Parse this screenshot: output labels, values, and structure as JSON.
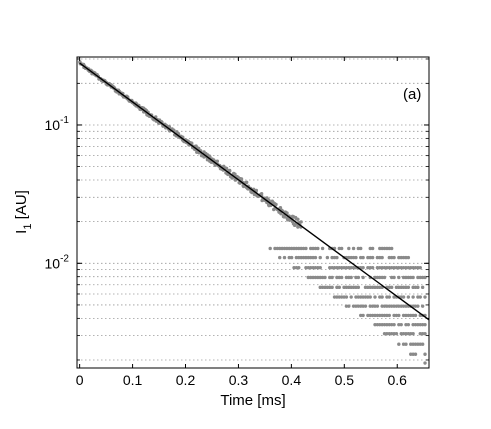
{
  "chart_data": {
    "type": "scatter",
    "panel_label": "(a)",
    "xlabel": "Time [ms]",
    "ylabel_main": "I",
    "ylabel_subscript": "1",
    "ylabel_unit": " [AU]",
    "x_scale": "linear",
    "y_scale": "log",
    "xlim": [
      -0.005,
      0.66
    ],
    "ylim": [
      0.00175,
      0.31
    ],
    "x_ticks": [
      0,
      0.1,
      0.2,
      0.3,
      0.4,
      0.5,
      0.6
    ],
    "x_tick_labels": [
      "0",
      "0.1",
      "0.2",
      "0.3",
      "0.4",
      "0.5",
      "0.6"
    ],
    "y_major_ticks": [
      {
        "value": 0.1,
        "base": "10",
        "exponent": "-1"
      },
      {
        "value": 0.01,
        "base": "10",
        "exponent": "-2"
      }
    ],
    "y_grid": "dotted minor gridlines at each decade subdivision",
    "fit_line": {
      "points": [
        [
          0,
          0.28
        ],
        [
          0.66,
          0.0039
        ]
      ],
      "color": "#000000"
    },
    "scatter": {
      "color": "#8a8a8a",
      "description_points": [
        [
          0.0,
          0.272
        ],
        [
          0.05,
          0.196
        ],
        [
          0.1,
          0.14
        ],
        [
          0.15,
          0.099
        ],
        [
          0.2,
          0.071
        ],
        [
          0.25,
          0.051
        ],
        [
          0.3,
          0.036
        ],
        [
          0.35,
          0.026
        ],
        [
          0.4,
          0.0185
        ],
        [
          0.45,
          0.0132
        ],
        [
          0.5,
          0.0095
        ],
        [
          0.55,
          0.0069
        ],
        [
          0.6,
          0.005
        ],
        [
          0.65,
          0.0036
        ]
      ],
      "quantized_levels_late_time": [
        0.0128,
        0.011,
        0.0093,
        0.0079,
        0.0067,
        0.0057,
        0.0049,
        0.0042,
        0.0036,
        0.0031,
        0.0026,
        0.0022,
        0.0019
      ]
    },
    "grid": true
  },
  "colors": {
    "fit": "#000000",
    "scatter": "#8a8a8a",
    "axis": "#000000",
    "grid": "#9a9a9a"
  }
}
